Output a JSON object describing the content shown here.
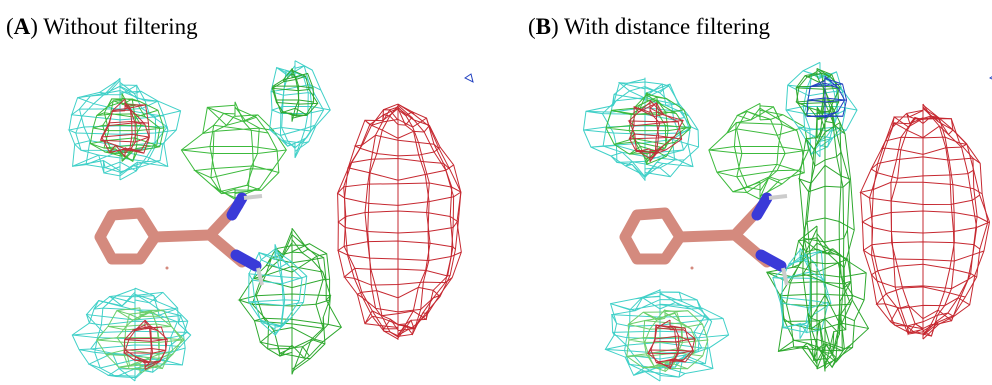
{
  "panels": [
    {
      "title_parts": [
        "(",
        "A",
        ") Without filtering"
      ]
    },
    {
      "title_parts": [
        "(",
        "B",
        ") With distance filtering"
      ]
    }
  ]
}
